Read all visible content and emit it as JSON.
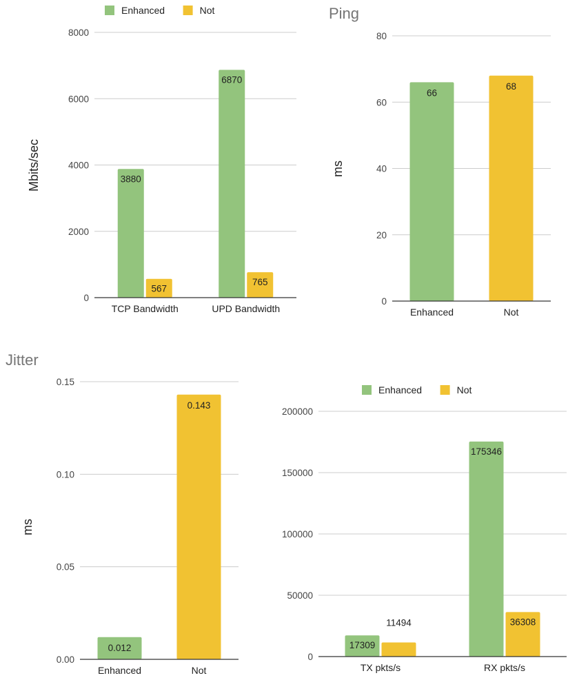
{
  "chart_data": [
    {
      "id": "bandwidth",
      "type": "bar",
      "title": "",
      "xlabel": "",
      "ylabel": "Mbits/sec",
      "ylim": [
        0,
        8000
      ],
      "yticks": [
        0,
        2000,
        4000,
        6000,
        8000
      ],
      "grid": true,
      "legend": "top",
      "categories": [
        "TCP Bandwidth",
        "UPD Bandwidth"
      ],
      "series": [
        {
          "name": "Enhanced",
          "color": "#93c47d",
          "values": [
            3880,
            6870
          ]
        },
        {
          "name": "Not",
          "color": "#f1c232",
          "values": [
            567,
            765
          ]
        }
      ]
    },
    {
      "id": "ping",
      "type": "bar",
      "title": "Ping",
      "xlabel": "",
      "ylabel": "ms",
      "ylim": [
        0,
        80
      ],
      "yticks": [
        0,
        20,
        40,
        60,
        80
      ],
      "grid": true,
      "legend": "none",
      "categories": [
        "Enhanced",
        "Not"
      ],
      "series": [
        {
          "name": "",
          "values": [
            66,
            68
          ],
          "colors": [
            "#93c47d",
            "#f1c232"
          ]
        }
      ]
    },
    {
      "id": "jitter",
      "type": "bar",
      "title": "Jitter",
      "xlabel": "",
      "ylabel": "ms",
      "ylim": [
        0,
        0.15
      ],
      "yticks": [
        "0.00",
        "0.05",
        "0.10",
        "0.15"
      ],
      "grid": true,
      "legend": "none",
      "categories": [
        "Enhanced",
        "Not"
      ],
      "series": [
        {
          "name": "",
          "values": [
            0.012,
            0.143
          ],
          "colors": [
            "#93c47d",
            "#f1c232"
          ]
        }
      ]
    },
    {
      "id": "packets",
      "type": "bar",
      "title": "",
      "xlabel": "",
      "ylabel": "",
      "ylim": [
        0,
        200000
      ],
      "yticks": [
        0,
        50000,
        100000,
        150000,
        200000
      ],
      "grid": true,
      "legend": "top",
      "categories": [
        "TX pkts/s",
        "RX pkts/s"
      ],
      "series": [
        {
          "name": "Enhanced",
          "color": "#93c47d",
          "values": [
            17309,
            175346
          ]
        },
        {
          "name": "Not",
          "color": "#f1c232",
          "values": [
            11494,
            36308
          ]
        }
      ]
    }
  ]
}
